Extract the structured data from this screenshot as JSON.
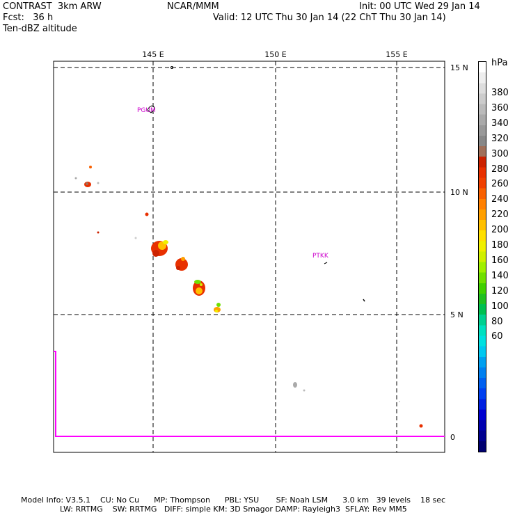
{
  "header": {
    "line1_left": "CONTRAST  3km ARW",
    "line1_center": "NCAR/MMM",
    "line1_right": "Init: 00 UTC Wed 29 Jan 14",
    "line2_left": "Fcst:   36 h",
    "line2_right": "Valid: 12 UTC Thu 30 Jan 14 (22 ChT Thu 30 Jan 14)",
    "line3_left": "Ten-dBZ altitude"
  },
  "map": {
    "lon_labels": [
      "145 E",
      "150 E",
      "155 E"
    ],
    "lat_labels": [
      "15 N",
      "10 N",
      "5 N"
    ],
    "stations": [
      "PGUM",
      "PTKK"
    ],
    "inset_zero_label": "0",
    "colors": {
      "grid": "#000000",
      "inset_line": "#ff00ff",
      "station_text": "#cc00cc"
    }
  },
  "colorbar": {
    "unit": "hPa",
    "tick_labels": [
      "380",
      "360",
      "340",
      "320",
      "300",
      "280",
      "260",
      "240",
      "220",
      "200",
      "180",
      "160",
      "140",
      "120",
      "100",
      "80",
      "60"
    ],
    "colors": [
      "#ffffff",
      "#eeeeee",
      "#dddddd",
      "#cccccc",
      "#bbbbbb",
      "#aaaaaa",
      "#999999",
      "#888888",
      "#a0705a",
      "#cc2200",
      "#e83000",
      "#f04000",
      "#f86000",
      "#ff8000",
      "#ffa000",
      "#ffc000",
      "#ffe000",
      "#f0f000",
      "#d0f000",
      "#a0f000",
      "#70e000",
      "#40d000",
      "#20c020",
      "#00c050",
      "#00d090",
      "#00e0c0",
      "#00e0e0",
      "#00c8f0",
      "#00a0f0",
      "#0080f0",
      "#0060f0",
      "#0040f0",
      "#0020e0",
      "#0000d0",
      "#0000b0",
      "#000090",
      "#000070"
    ]
  },
  "footer": {
    "line1": "Model Info: V3.5.1    CU: No Cu      MP: Thompson      PBL: YSU       SF: Noah LSM      3.0 km   39 levels    18 sec",
    "line2": "                LW: RRTMG    SW: RRTMG   DIFF: simple KM: 3D Smagor DAMP: Rayleigh3  SFLAY: Rev MM5"
  }
}
